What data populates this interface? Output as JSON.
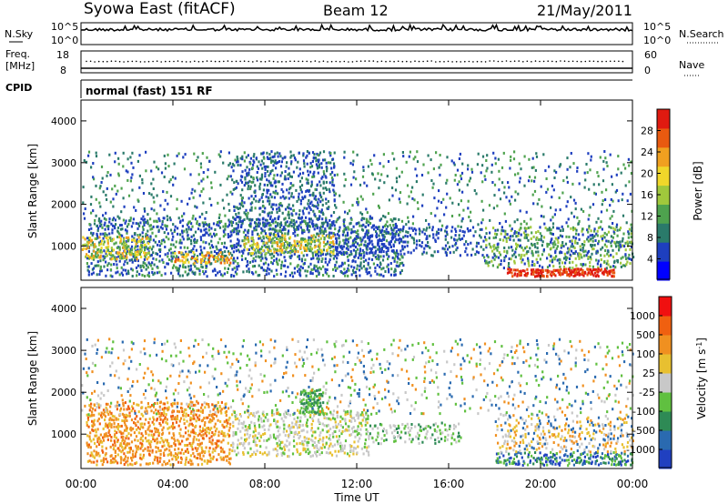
{
  "header": {
    "station": "Syowa East (fitACF)",
    "beam": "Beam 12",
    "date": "21/May/2011"
  },
  "noise_panel": {
    "left_label": "N.Sky",
    "right_label": "N.Search",
    "left_ticks": [
      "10^5",
      "10^0"
    ],
    "right_ticks": [
      "10^5",
      "10^0"
    ]
  },
  "freq_panel": {
    "left_label_1": "Freq.",
    "left_label_2": "[MHz]",
    "right_label": "Nave",
    "left_ticks": [
      "18",
      "8"
    ],
    "right_ticks": [
      "60",
      "0"
    ]
  },
  "cpid": {
    "label": "CPID",
    "mode_text": "normal (fast) 151 RF"
  },
  "chart_data": [
    {
      "type": "heatmap",
      "panel": "power",
      "ylabel": "Slant Range [km]",
      "xlabel": "",
      "ylim": [
        180,
        4500
      ],
      "yticks": [
        "1000",
        "2000",
        "3000",
        "4000"
      ],
      "xlim_hours": [
        0,
        24
      ],
      "colorbar": {
        "label": "Power [dB]",
        "ticks": [
          "28",
          "24",
          "20",
          "16",
          "12",
          "8",
          "4"
        ],
        "colors": [
          "#0000ff",
          "#1e3fbf",
          "#2a7a6a",
          "#4ea24e",
          "#a0c83c",
          "#f0d72a",
          "#f0a020",
          "#e85a10",
          "#e01a10"
        ]
      },
      "features": [
        {
          "from_h": 0.0,
          "to_h": 2.0,
          "range_km": [
            700,
            1200
          ],
          "level_db": 20
        },
        {
          "from_h": 4.0,
          "to_h": 6.5,
          "range_km": [
            650,
            850
          ],
          "level_db": 24
        },
        {
          "from_h": 18.5,
          "to_h": 23.0,
          "range_km": [
            300,
            480
          ],
          "level_db": 28
        }
      ]
    },
    {
      "type": "heatmap",
      "panel": "velocity",
      "ylabel": "Slant Range [km]",
      "xlabel": "Time UT",
      "ylim": [
        180,
        4500
      ],
      "yticks": [
        "1000",
        "2000",
        "3000",
        "4000"
      ],
      "xticks": [
        "00:00",
        "04:00",
        "08:00",
        "12:00",
        "16:00",
        "20:00",
        "00:00"
      ],
      "xlim_hours": [
        0,
        24
      ],
      "colorbar": {
        "label": "Velocity [m s",
        "label_sup": "-1",
        "label_end": "]",
        "ticks": [
          "1000",
          "500",
          "100",
          "25",
          "-25",
          "-100",
          "-500",
          "-1000"
        ],
        "colors": [
          "#2040c0",
          "#2a6ab0",
          "#2e8a55",
          "#60c040",
          "#c8c8c8",
          "#e8c030",
          "#f09020",
          "#f06010",
          "#f01010"
        ]
      }
    }
  ]
}
